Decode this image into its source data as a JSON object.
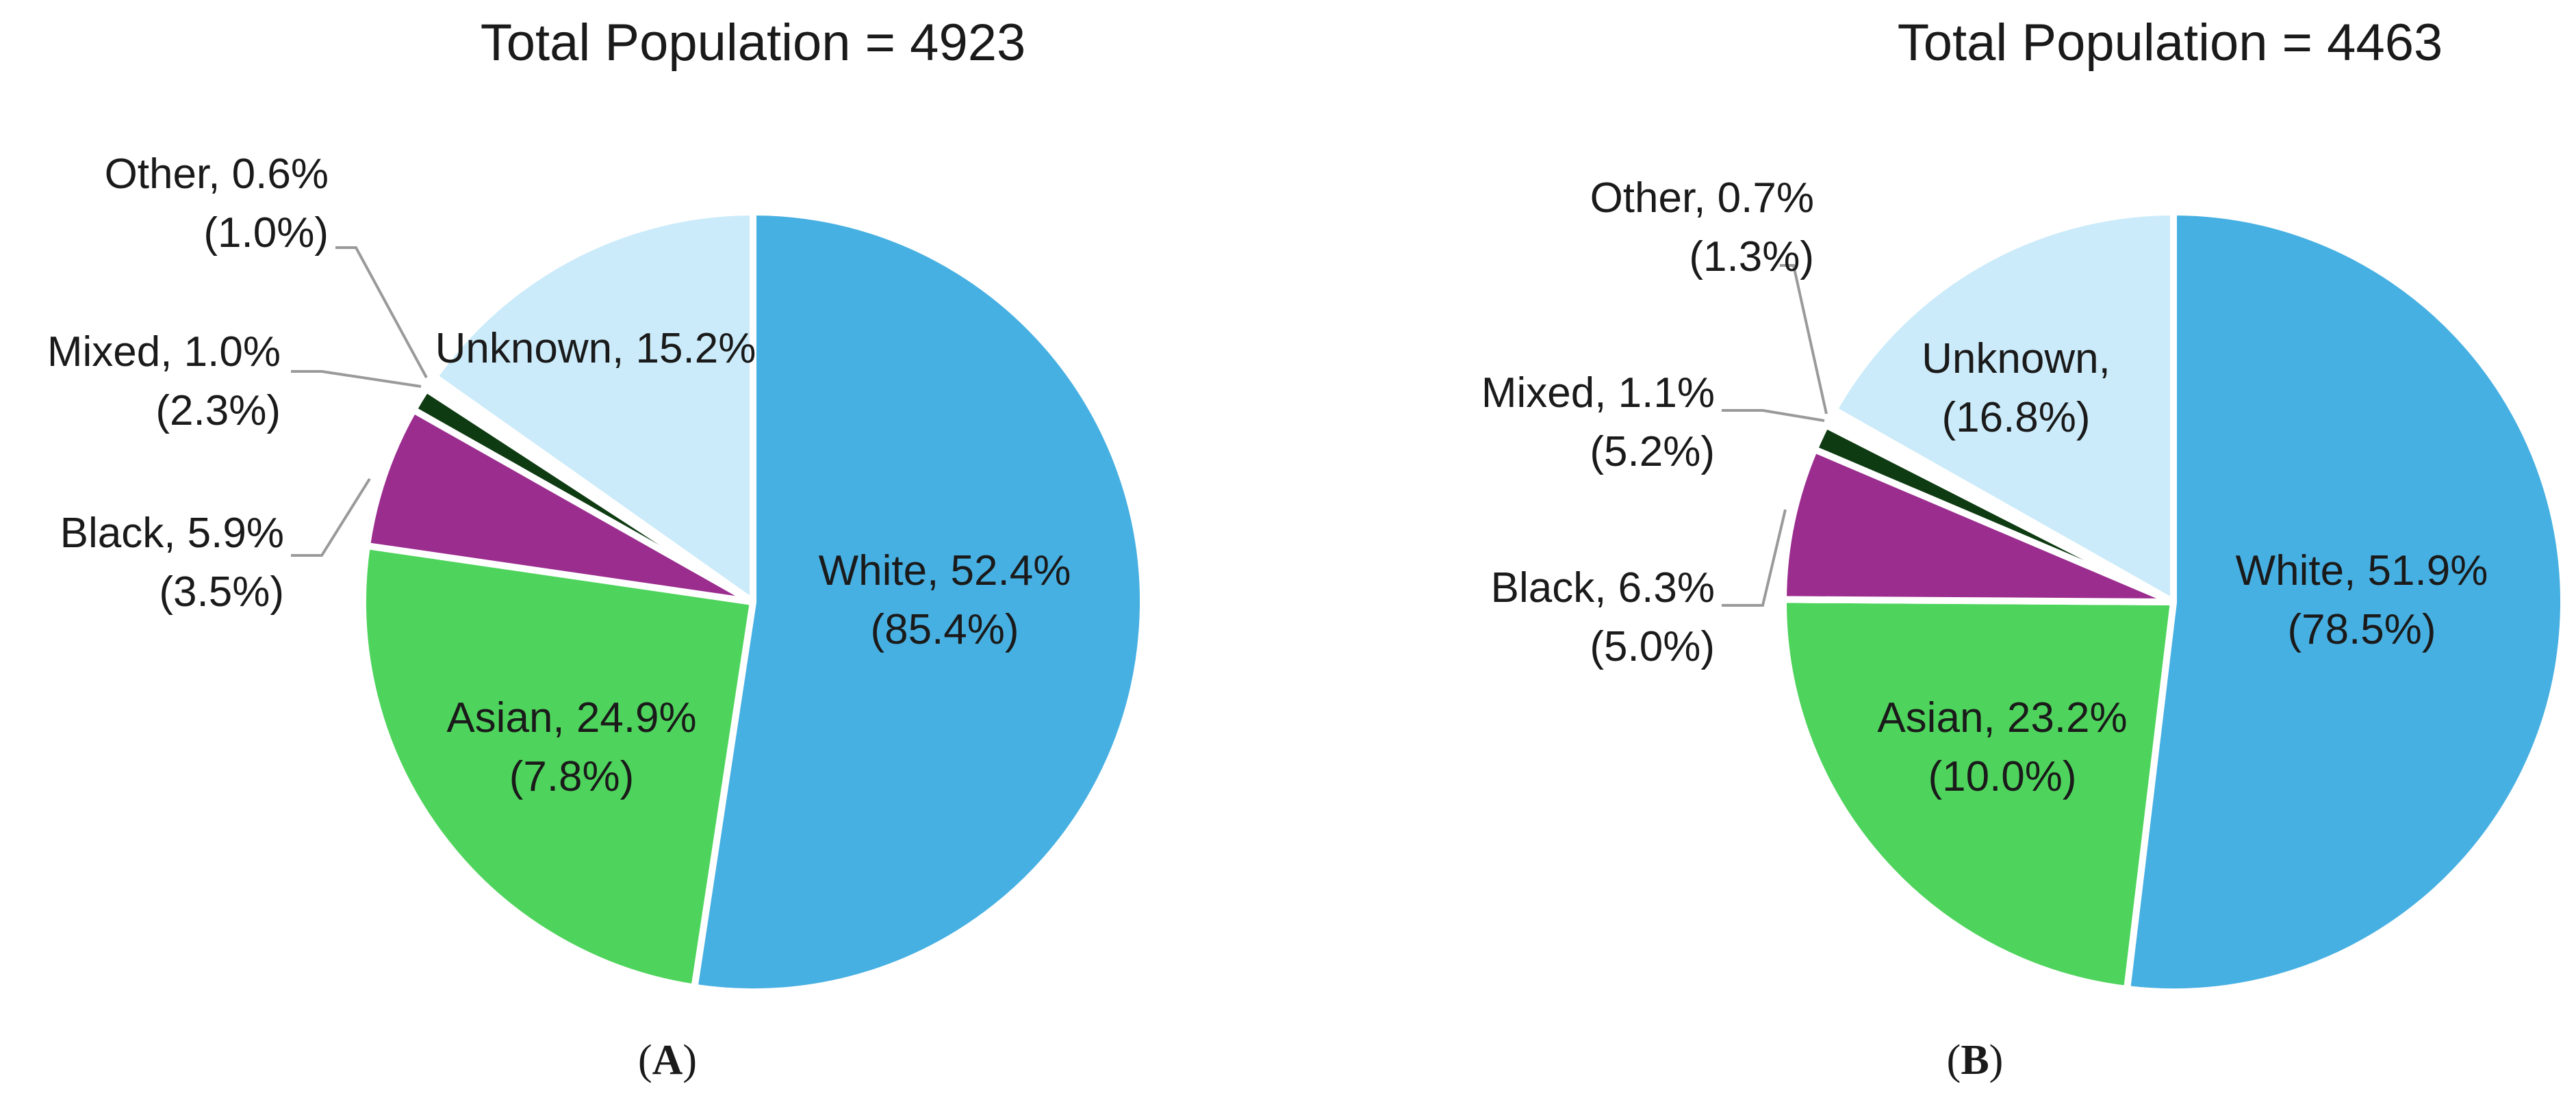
{
  "chart_data": [
    {
      "type": "pie",
      "panel": "A",
      "title": "Total Population = 4923",
      "slices": [
        {
          "name": "White",
          "value": 52.4,
          "pct": "52.4%",
          "secondary": "(85.4%)",
          "color": "#47B0E2"
        },
        {
          "name": "Asian",
          "value": 24.9,
          "pct": "24.9%",
          "secondary": "(7.8%)",
          "color": "#4ED45C"
        },
        {
          "name": "Black",
          "value": 5.9,
          "pct": "5.9%",
          "secondary": "(3.5%)",
          "color": "#9B2D8F"
        },
        {
          "name": "Mixed",
          "value": 1.0,
          "pct": "1.0%",
          "secondary": "(2.3%)",
          "color": "#0E3B12"
        },
        {
          "name": "Other",
          "value": 0.6,
          "pct": "0.6%",
          "secondary": "(1.0%)",
          "color": "#FFFFFF"
        },
        {
          "name": "Unknown",
          "value": 15.2,
          "pct": "15.2%",
          "secondary": "",
          "color": "#CBEBFA"
        }
      ]
    },
    {
      "type": "pie",
      "panel": "B",
      "title": "Total Population = 4463",
      "slices": [
        {
          "name": "White",
          "value": 51.9,
          "pct": "51.9%",
          "secondary": "(78.5%)",
          "color": "#47B0E2"
        },
        {
          "name": "Asian",
          "value": 23.2,
          "pct": "23.2%",
          "secondary": "(10.0%)",
          "color": "#4ED45C"
        },
        {
          "name": "Black",
          "value": 6.3,
          "pct": "6.3%",
          "secondary": "(5.0%)",
          "color": "#9B2D8F"
        },
        {
          "name": "Mixed",
          "value": 1.1,
          "pct": "1.1%",
          "secondary": "(5.2%)",
          "color": "#0E3B12"
        },
        {
          "name": "Other",
          "value": 0.7,
          "pct": "0.7%",
          "secondary": "(1.3%)",
          "color": "#FFFFFF"
        },
        {
          "name": "Unknown",
          "value": 16.8,
          "pct": "",
          "secondary": "(16.8%)",
          "color": "#CBEBFA"
        }
      ]
    }
  ]
}
